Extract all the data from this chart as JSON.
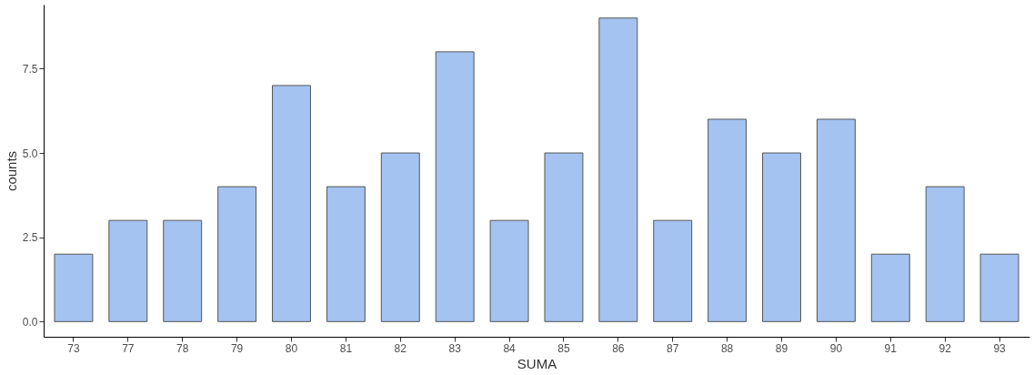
{
  "chart_data": {
    "type": "bar",
    "xlabel": "SUMA",
    "ylabel": "counts",
    "categories": [
      "73",
      "77",
      "78",
      "79",
      "80",
      "81",
      "82",
      "83",
      "84",
      "85",
      "86",
      "87",
      "88",
      "89",
      "90",
      "91",
      "92",
      "93"
    ],
    "values": [
      2,
      3,
      3,
      4,
      7,
      4,
      5,
      8,
      3,
      5,
      9,
      3,
      6,
      5,
      6,
      2,
      4,
      2
    ],
    "color": "#a4c3f0",
    "ylim": [
      -0.45,
      9.4
    ],
    "yticks": [
      {
        "value": 0,
        "label": "0.0"
      },
      {
        "value": 2.5,
        "label": "2.5"
      },
      {
        "value": 5,
        "label": "5.0"
      },
      {
        "value": 7.5,
        "label": "7.5"
      }
    ],
    "grid": false
  }
}
